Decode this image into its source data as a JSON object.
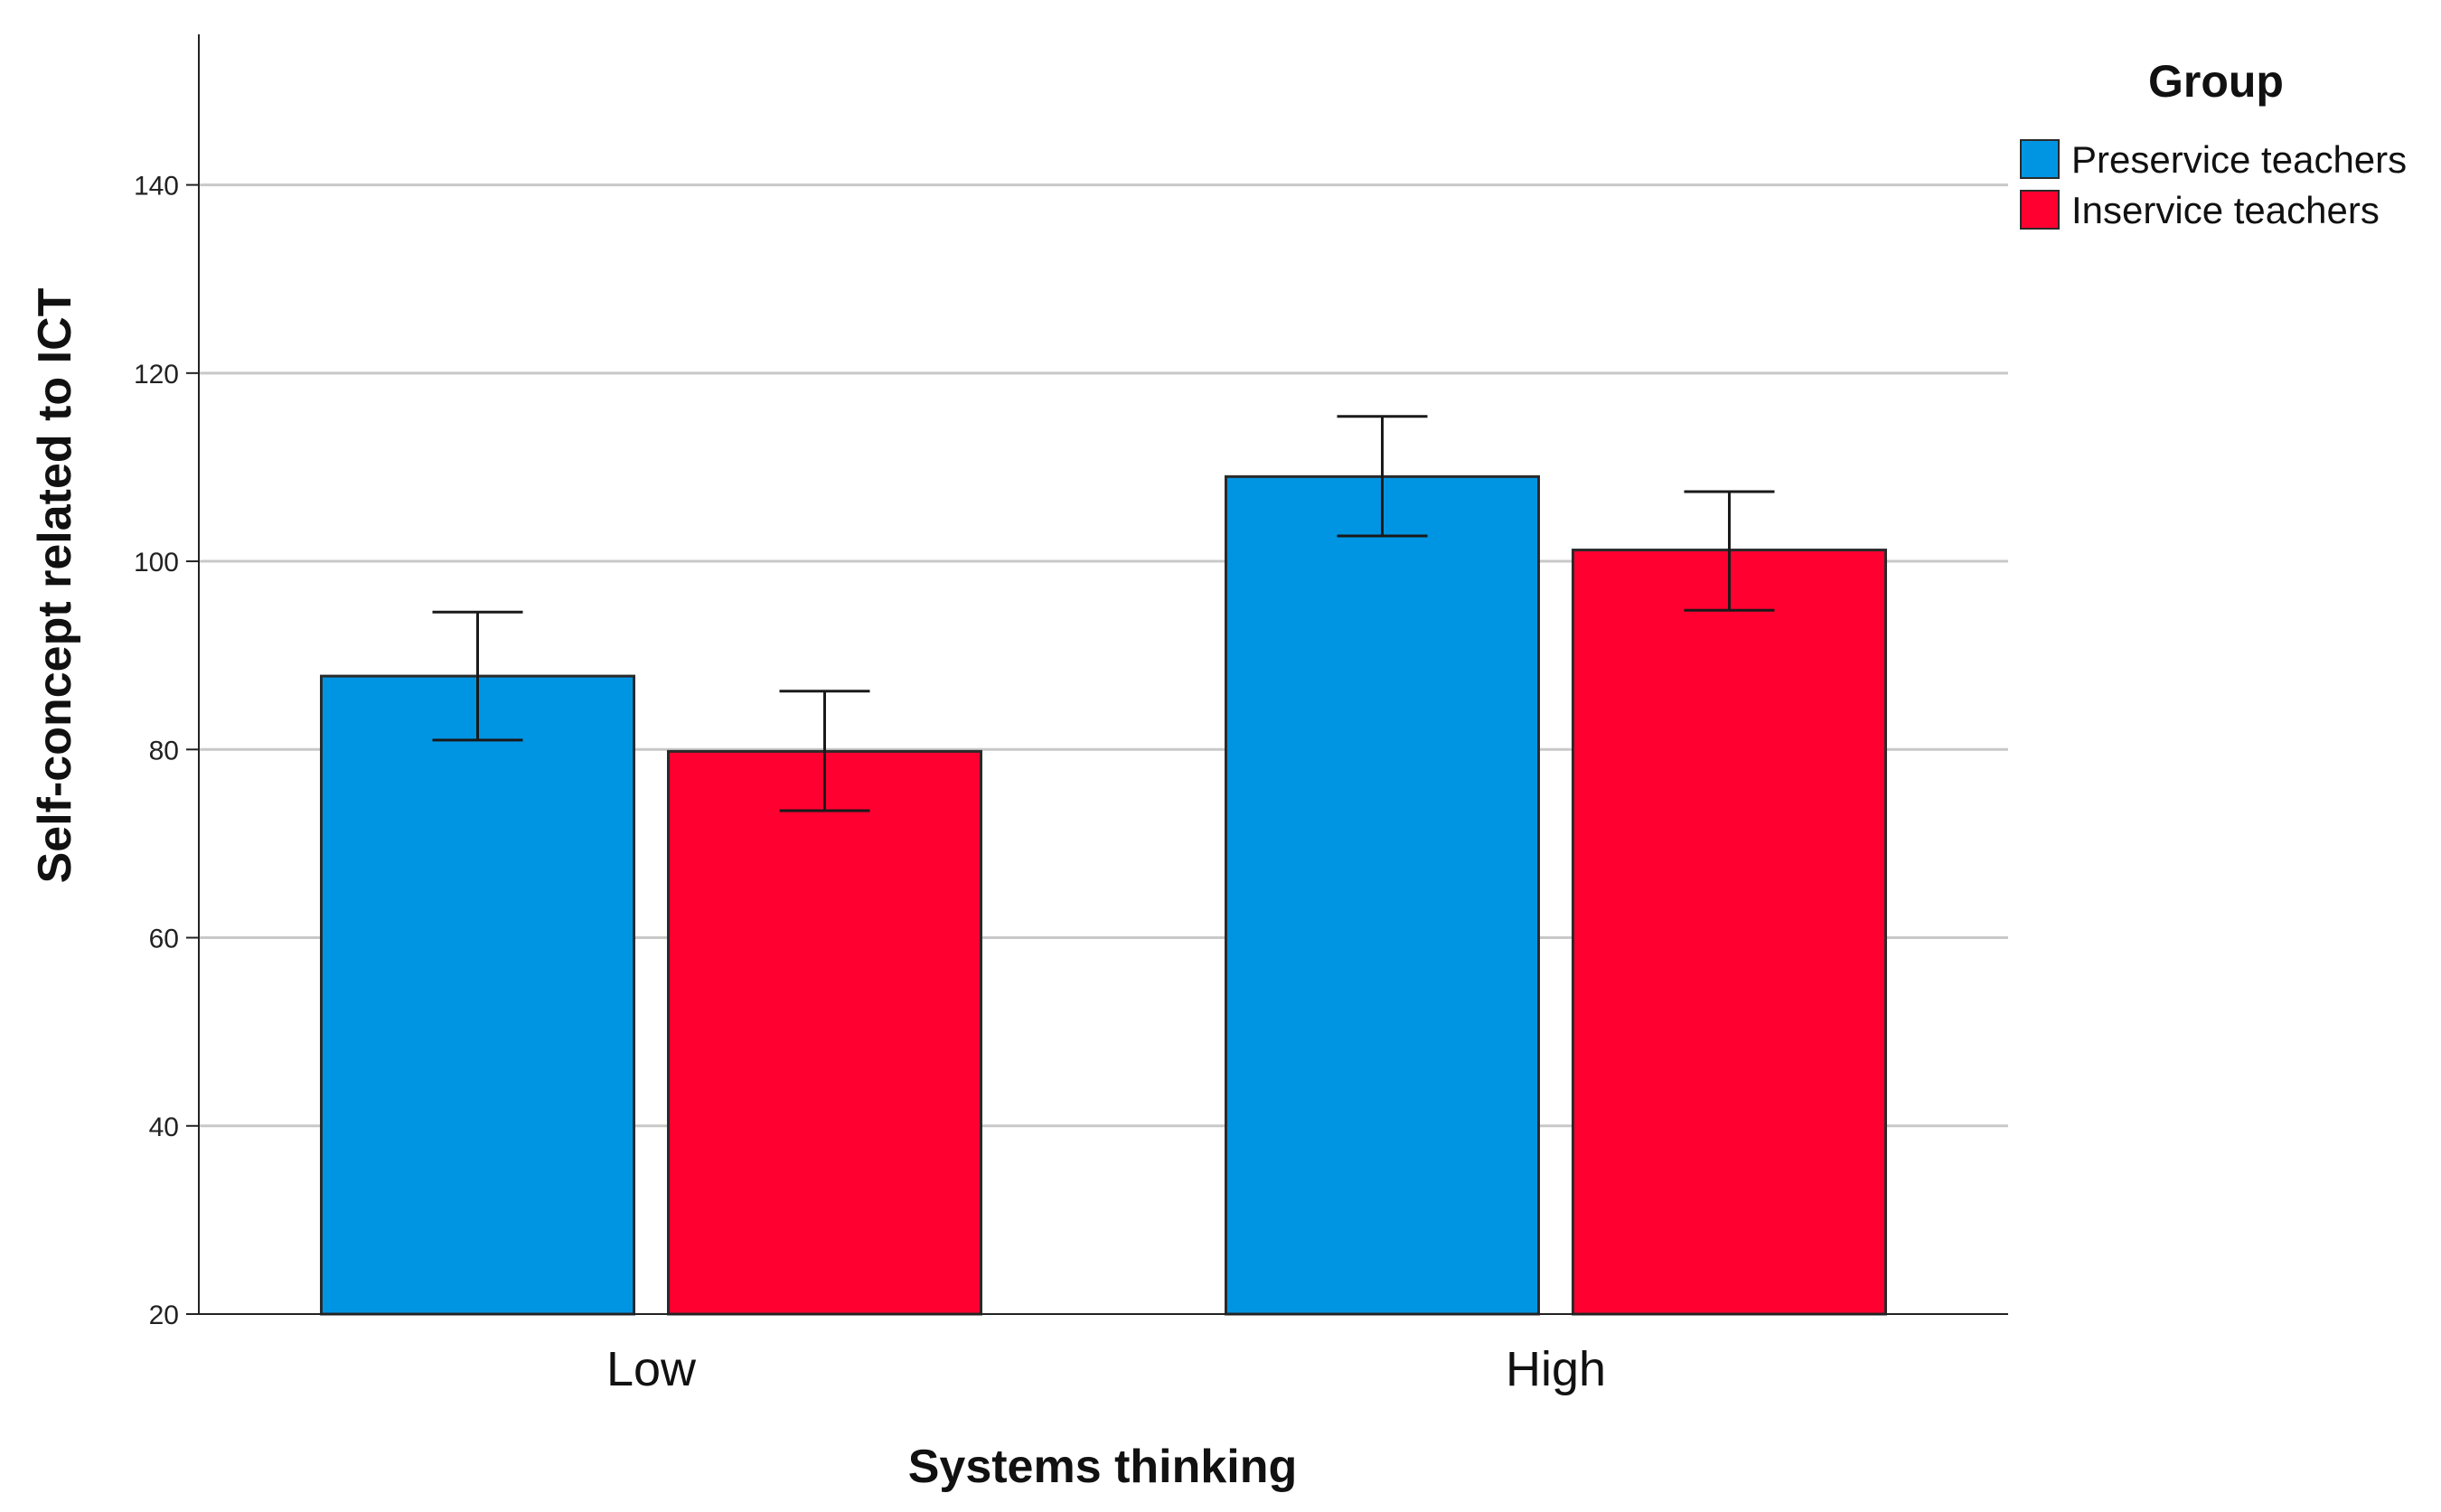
{
  "chart_data": {
    "type": "bar",
    "title": "",
    "xlabel": "Systems thinking",
    "ylabel": "Self-concept related to ICT",
    "categories": [
      "Low",
      "High"
    ],
    "ylim": [
      20,
      156
    ],
    "yticks": [
      20,
      40,
      60,
      80,
      100,
      120,
      140
    ],
    "grid": true,
    "legend": {
      "title": "Group",
      "placement": "top-right"
    },
    "series": [
      {
        "name": "Preservice teachers",
        "color": "#0095E3",
        "values": [
          87.8,
          109.0
        ],
        "error_low": [
          81.0,
          102.7
        ],
        "error_high": [
          94.6,
          115.4
        ]
      },
      {
        "name": "Inservice teachers",
        "color": "#FF0030",
        "values": [
          79.8,
          101.2
        ],
        "error_low": [
          73.5,
          94.8
        ],
        "error_high": [
          86.2,
          107.4
        ]
      }
    ]
  }
}
